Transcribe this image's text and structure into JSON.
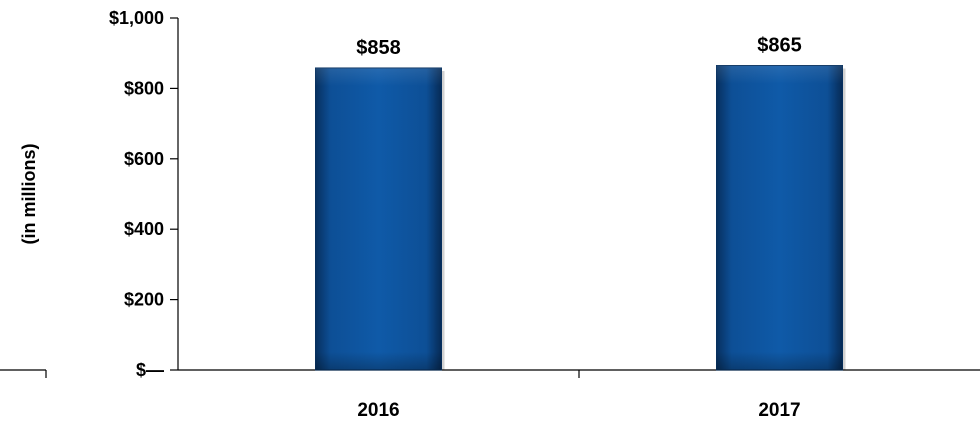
{
  "chart_data": {
    "type": "bar",
    "title": "",
    "xlabel": "",
    "ylabel": "(in millions)",
    "categories": [
      "2016",
      "2017"
    ],
    "values": [
      858,
      865
    ],
    "data_labels": [
      "$858",
      "$865"
    ],
    "ylim": [
      0,
      1000
    ],
    "yticks": [
      0,
      200,
      400,
      600,
      800,
      1000
    ],
    "ytick_labels": [
      "$—",
      "$200",
      "$400",
      "$600",
      "$800",
      "$1,000"
    ],
    "grid": false,
    "legend": "none",
    "bar_color": "#0d4f96",
    "bar_color_dark": "#07305f"
  }
}
